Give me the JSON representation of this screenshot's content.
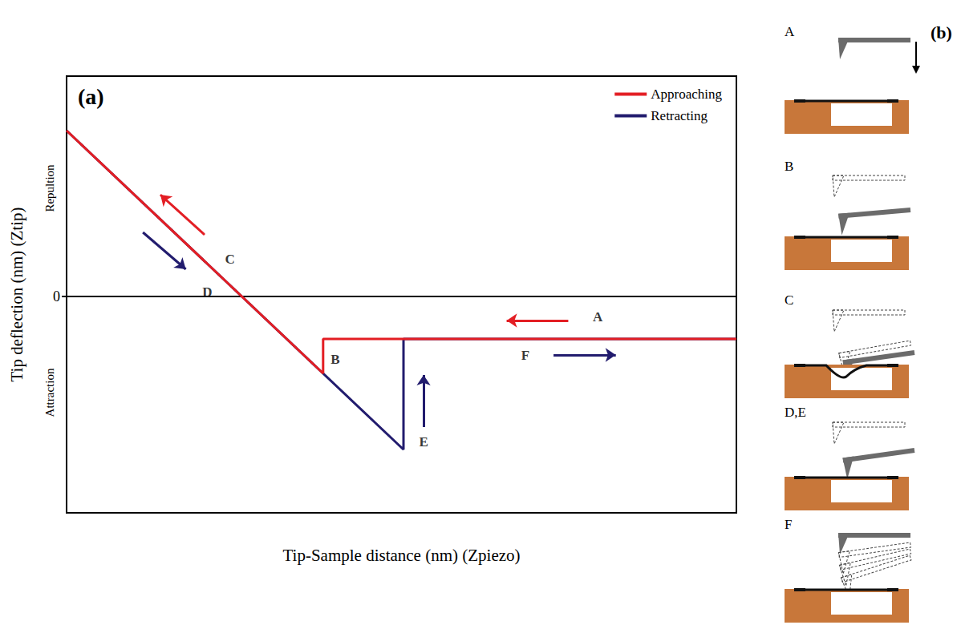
{
  "chart_data": {
    "type": "line",
    "panel_label": "(a)",
    "x_label": "Tip-Sample distance (nm) (Zpiezo)",
    "y_label": "Tip deflection (nm) (Ztip)",
    "xlim": [
      0,
      100
    ],
    "ylim": [
      -54,
      55
    ],
    "yticks": [
      0
    ],
    "tick_labels": "y",
    "grid": false,
    "legend": "upper right",
    "series": [
      {
        "name": "Approaching",
        "color": "#e31e24",
        "x": [
          100,
          38.3,
          38.3,
          0
        ],
        "values": [
          -10.6,
          -10.6,
          -19.2,
          41.4
        ]
      },
      {
        "name": "Retracting",
        "color": "#221c6e",
        "x": [
          0,
          50.3,
          50.3,
          100
        ],
        "values": [
          41.4,
          -38.2,
          -10.6,
          -10.6
        ]
      }
    ],
    "y_side_labels": [
      {
        "text": "Repultion",
        "y": 27
      },
      {
        "text": "Attraction",
        "y": -24
      }
    ],
    "annotations": [
      {
        "text": "A",
        "x": 79.3,
        "y": -5
      },
      {
        "text": "B",
        "x": 40.1,
        "y": -15.6
      },
      {
        "text": "C",
        "x": 24.4,
        "y": 9.4
      },
      {
        "text": "D",
        "x": 21,
        "y": 1.2
      },
      {
        "text": "E",
        "x": 53.3,
        "y": -36.2
      },
      {
        "text": "F",
        "x": 68.5,
        "y": -14.6
      }
    ],
    "arrows": [
      {
        "color": "#e31e24",
        "from": [
          74.9,
          -6
        ],
        "to": [
          65.7,
          -6
        ]
      },
      {
        "color": "#221c6e",
        "from": [
          72.7,
          -14.6
        ],
        "to": [
          82,
          -14.6
        ]
      },
      {
        "color": "#e31e24",
        "from": [
          20.6,
          15.4
        ],
        "to": [
          14,
          25.4
        ]
      },
      {
        "color": "#221c6e",
        "from": [
          11.4,
          16
        ],
        "to": [
          17.8,
          6.8
        ]
      },
      {
        "color": "#221c6e",
        "from": [
          53.3,
          -32.6
        ],
        "to": [
          53.3,
          -19.6
        ]
      }
    ]
  },
  "schematic": {
    "label": "(b)",
    "steps": [
      "A",
      "B",
      "C",
      "D,E",
      "F"
    ]
  }
}
